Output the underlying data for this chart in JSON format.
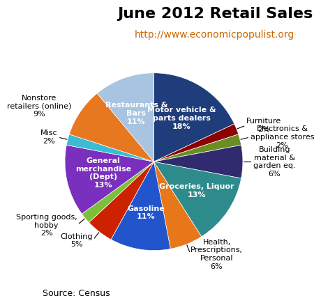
{
  "title": "June 2012 Retail Sales",
  "subtitle": "http://www.economicpopulist.org",
  "source": "Source: Census",
  "slices": [
    {
      "label": "Motor vehicle &\nparts dealers\n18%",
      "value": 18,
      "color": "#1F3D7A",
      "inside": true
    },
    {
      "label": "Furniture\n2%",
      "value": 2,
      "color": "#8B0000",
      "inside": false
    },
    {
      "label": "Electronics &\nappliance stores\n2%",
      "value": 2,
      "color": "#6B8E23",
      "inside": false
    },
    {
      "label": "Building\nmaterial &\ngarden eq.\n6%",
      "value": 6,
      "color": "#2F2B6E",
      "inside": false
    },
    {
      "label": "Groceries, Liquor\n13%",
      "value": 13,
      "color": "#2E8B8B",
      "inside": true
    },
    {
      "label": "Health,\nPrescriptions,\nPersonal\n6%",
      "value": 6,
      "color": "#E8771A",
      "inside": false
    },
    {
      "label": "Gasoline\n11%",
      "value": 11,
      "color": "#2255CC",
      "inside": true
    },
    {
      "label": "Clothing\n5%",
      "value": 5,
      "color": "#CC2200",
      "inside": false
    },
    {
      "label": "Sporting goods,\nhobby\n2%",
      "value": 2,
      "color": "#7BBF3A",
      "inside": false
    },
    {
      "label": "General\nmerchandise\n(Dept)\n13%",
      "value": 13,
      "color": "#7B2FBE",
      "inside": true
    },
    {
      "label": "Misc\n2%",
      "value": 2,
      "color": "#3BBCD4",
      "inside": false
    },
    {
      "label": "Nonstore\nretailers (online)\n9%",
      "value": 9,
      "color": "#E87820",
      "inside": false
    },
    {
      "label": "Restaurants &\nBars\n11%",
      "value": 11,
      "color": "#A8C4E0",
      "inside": true
    }
  ],
  "background_color": "#FFFFFF",
  "title_fontsize": 16,
  "subtitle_fontsize": 10,
  "label_fontsize": 8,
  "source_fontsize": 9,
  "subtitle_color": "#CC6600"
}
